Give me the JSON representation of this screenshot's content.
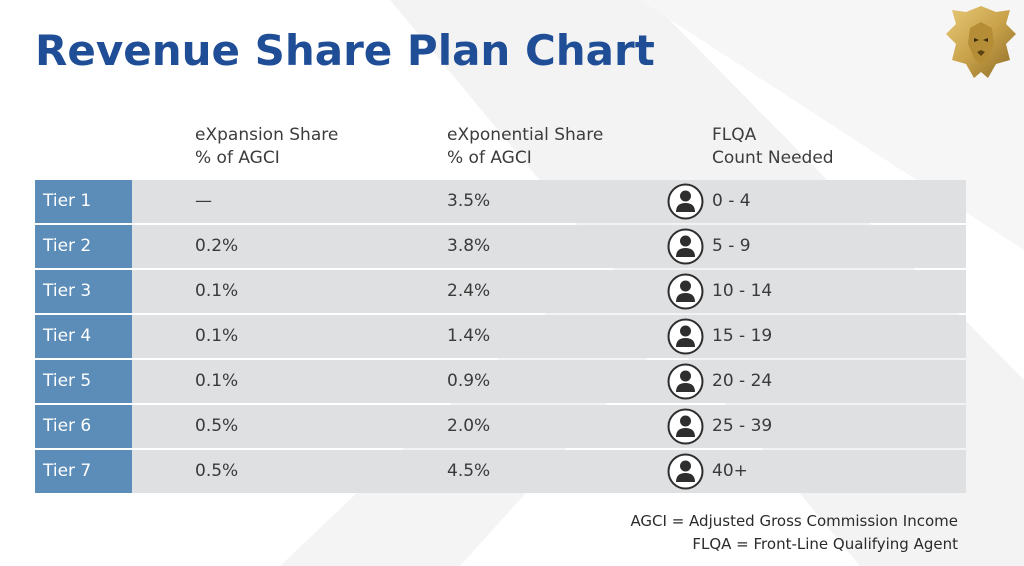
{
  "title": "Revenue Share Plan Chart",
  "headers": [
    [
      "eXpansion Share",
      "% of AGCI"
    ],
    [
      "eXponential Share",
      "% of AGCI"
    ],
    [
      "FLQA",
      "Count Needed"
    ]
  ],
  "rows": [
    {
      "tier": "Tier 1",
      "expansion": "—",
      "exponential": "3.5%",
      "flqa": "0 - 4"
    },
    {
      "tier": "Tier 2",
      "expansion": "0.2%",
      "exponential": "3.8%",
      "flqa": "5 - 9"
    },
    {
      "tier": "Tier 3",
      "expansion": "0.1%",
      "exponential": "2.4%",
      "flqa": "10 - 14"
    },
    {
      "tier": "Tier 4",
      "expansion": "0.1%",
      "exponential": "1.4%",
      "flqa": "15 - 19"
    },
    {
      "tier": "Tier 5",
      "expansion": "0.1%",
      "exponential": "0.9%",
      "flqa": "20 - 24"
    },
    {
      "tier": "Tier 6",
      "expansion": "0.5%",
      "exponential": "2.0%",
      "flqa": "25 - 39"
    },
    {
      "tier": "Tier 7",
      "expansion": "0.5%",
      "exponential": "4.5%",
      "flqa": "40+"
    }
  ],
  "legend": [
    "AGCI = Adjusted Gross Commission Income",
    "FLQA = Front-Line Qualifying Agent"
  ],
  "icons": {
    "person": "person-icon",
    "logo": "lion-logo-icon"
  },
  "colors": {
    "title": "#1f4e96",
    "tier_cell": "#5b8db8",
    "row_bg": "#dfe0e2",
    "logo_gold": "#c9a24a"
  }
}
